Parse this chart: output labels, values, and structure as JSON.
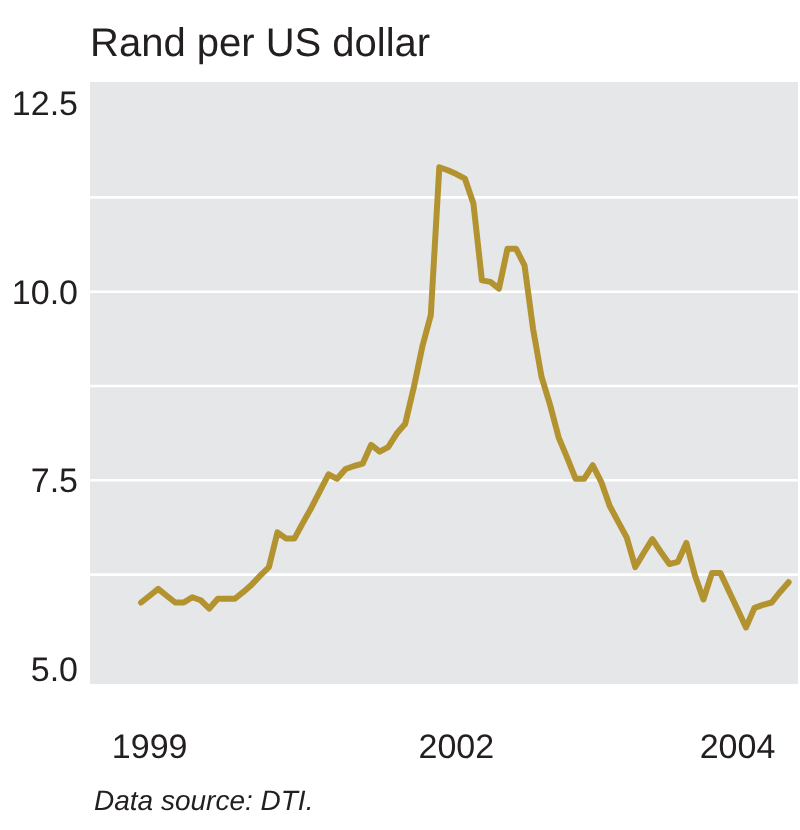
{
  "chart_data": {
    "type": "line",
    "title": "Rand per US dollar",
    "annotations": [
      "Data source: DTI."
    ],
    "categories": [
      null,
      "1999",
      null,
      null,
      null,
      null,
      null,
      null,
      null,
      null,
      null,
      null,
      null,
      null,
      null,
      null,
      null,
      null,
      null,
      null,
      null,
      null,
      null,
      null,
      null,
      null,
      null,
      null,
      null,
      null,
      null,
      null,
      null,
      null,
      null,
      null,
      null,
      "2002",
      null,
      null,
      null,
      null,
      null,
      null,
      null,
      null,
      null,
      null,
      null,
      null,
      null,
      null,
      null,
      null,
      null,
      null,
      null,
      null,
      null,
      null,
      null,
      null,
      null,
      null,
      null,
      null,
      null,
      null,
      null,
      null,
      "2004",
      null,
      null,
      null,
      null,
      null,
      null
    ],
    "series": [
      {
        "color": "#b3932f",
        "values": [
          5.88,
          5.97,
          6.06,
          5.97,
          5.88,
          5.88,
          5.95,
          5.91,
          5.8,
          5.93,
          5.93,
          5.93,
          6.02,
          6.12,
          6.24,
          6.35,
          6.81,
          6.73,
          6.73,
          6.94,
          7.14,
          7.36,
          7.58,
          7.52,
          7.65,
          7.69,
          7.72,
          7.97,
          7.88,
          7.94,
          8.12,
          8.25,
          8.73,
          9.27,
          9.69,
          11.65,
          11.61,
          11.56,
          11.5,
          11.17,
          10.15,
          10.13,
          10.04,
          10.57,
          10.57,
          10.35,
          9.51,
          8.87,
          8.5,
          8.07,
          7.8,
          7.52,
          7.52,
          7.7,
          7.48,
          7.16,
          6.95,
          6.74,
          6.35,
          6.54,
          6.72,
          6.55,
          6.39,
          6.42,
          6.67,
          6.24,
          5.92,
          6.27,
          6.27,
          6.03,
          5.79,
          5.55,
          5.81,
          5.85,
          5.88,
          6.02,
          6.15
        ]
      }
    ],
    "ylim": [
      4.8,
      12.78
    ],
    "yticks": [
      {
        "value": 5,
        "label": "5.0"
      },
      {
        "value": 6.25,
        "label": null
      },
      7.5,
      {
        "value": 8.75,
        "label": null
      },
      {
        "value": 10,
        "label": "10.0"
      },
      {
        "value": 11.25,
        "label": null
      },
      12.5
    ],
    "grid": "y",
    "line_style": "solid"
  }
}
